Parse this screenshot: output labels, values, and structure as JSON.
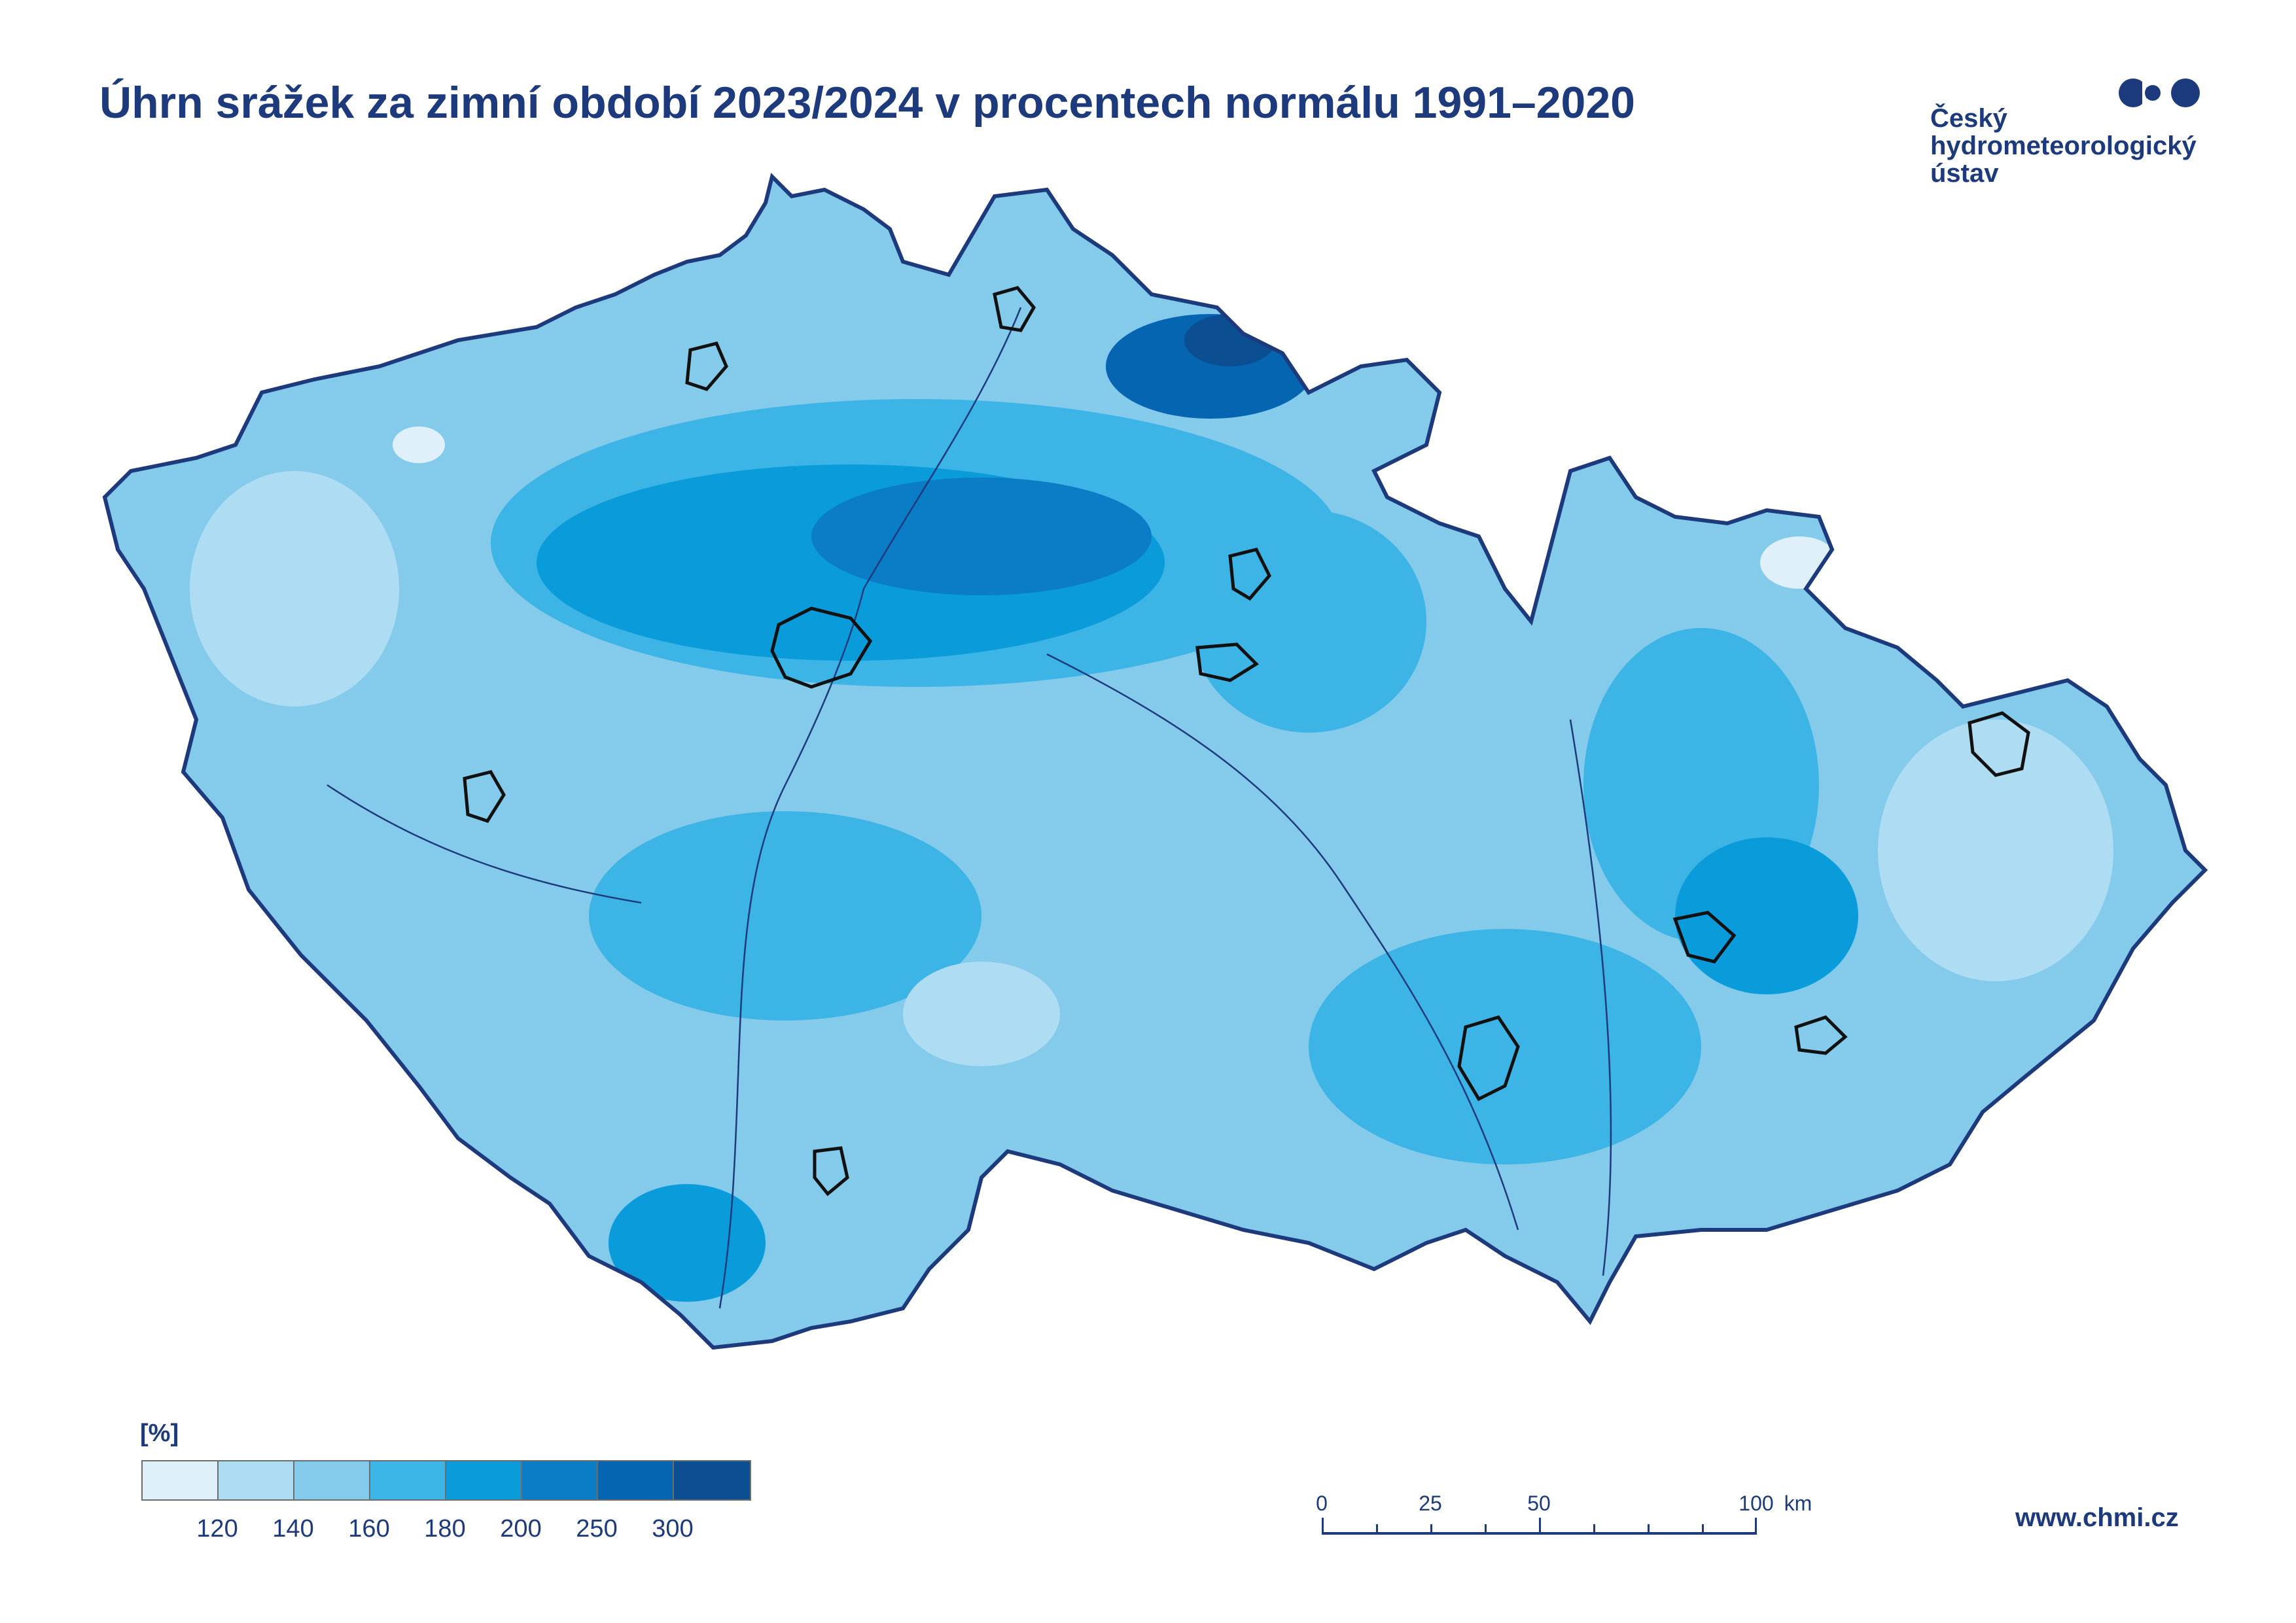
{
  "title": "Úhrn srážek za zimní období 2023/2024 v procentech normálu 1991–2020",
  "logo": {
    "line1": "Český",
    "line2": "hydrometeorologický",
    "line3": "ústav",
    "color": "#1d3a7c"
  },
  "legend": {
    "unit": "[%]",
    "labels": [
      "120",
      "140",
      "160",
      "180",
      "200",
      "250",
      "300"
    ],
    "colors": [
      "#dff0fa",
      "#aedcf3",
      "#84caeb",
      "#3db4e6",
      "#0a9bdb",
      "#0a7dc6",
      "#0565b1",
      "#0b4f92"
    ]
  },
  "scale": {
    "labels": [
      "0",
      "25",
      "50",
      "100"
    ],
    "unit": "km"
  },
  "website": "www.chmi.cz",
  "map": {
    "region": "Czech Republic",
    "boundary_color": "#1d3a7c",
    "river_color": "#1d3a7c",
    "city_outline_color": "#111111"
  }
}
